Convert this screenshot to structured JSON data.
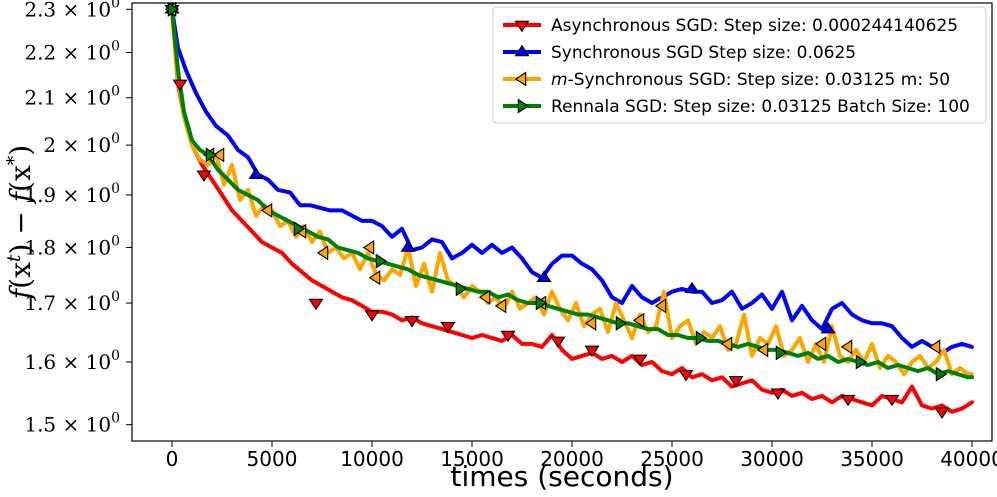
{
  "chart_data": {
    "type": "line",
    "title": "",
    "xlabel": "times (seconds)",
    "ylabel": "f(x^t) − f(x^*)",
    "yscale": "log",
    "xlim": [
      -2000,
      41000
    ],
    "ylim": [
      1.475,
      2.315
    ],
    "x_ticks": [
      0,
      5000,
      10000,
      15000,
      20000,
      25000,
      30000,
      35000,
      40000
    ],
    "x_tick_labels": [
      "0",
      "5000",
      "10000",
      "15000",
      "20000",
      "25000",
      "30000",
      "35000",
      "40000"
    ],
    "y_ticks": [
      1.5,
      1.6,
      1.7,
      1.8,
      1.9,
      2.0,
      2.1,
      2.2,
      2.3
    ],
    "y_tick_labels": [
      "1.5 × 10",
      "1.6 × 10",
      "1.7 × 10",
      "1.8 × 10",
      "1.9 × 10",
      "2 × 10",
      "2.1 × 10",
      "2.2 × 10",
      "2.3 × 10"
    ],
    "y_tick_exponent": "0",
    "legend_position": "top-right",
    "series": [
      {
        "name": "Asynchronous SGD: Step size: 0.000244140625",
        "color": "#ff0000",
        "marker": "triangle-down",
        "x": [
          0,
          300,
          600,
          1000,
          1500,
          2000,
          2500,
          3000,
          3500,
          4000,
          4500,
          5000,
          5500,
          6000,
          6500,
          7000,
          7500,
          8000,
          8500,
          9000,
          9500,
          10000,
          10500,
          11000,
          11500,
          12000,
          12500,
          13000,
          13500,
          14000,
          14500,
          15000,
          15500,
          16000,
          16500,
          17000,
          17500,
          18000,
          18500,
          19000,
          19500,
          20000,
          20500,
          21000,
          21500,
          22000,
          22500,
          23000,
          23500,
          24000,
          24500,
          25000,
          25500,
          26000,
          26500,
          27000,
          27500,
          28000,
          28500,
          29000,
          29500,
          30000,
          30500,
          31000,
          31500,
          32000,
          32500,
          33000,
          33500,
          34000,
          34500,
          35000,
          35500,
          36000,
          36500,
          37000,
          37500,
          38000,
          38500,
          39000,
          39500,
          40000
        ],
        "y": [
          2.3,
          2.13,
          2.06,
          2.0,
          1.96,
          1.93,
          1.9,
          1.87,
          1.85,
          1.83,
          1.81,
          1.8,
          1.79,
          1.77,
          1.755,
          1.74,
          1.73,
          1.72,
          1.71,
          1.705,
          1.695,
          1.685,
          1.685,
          1.68,
          1.67,
          1.675,
          1.665,
          1.66,
          1.655,
          1.65,
          1.645,
          1.64,
          1.645,
          1.64,
          1.635,
          1.645,
          1.63,
          1.63,
          1.625,
          1.645,
          1.62,
          1.605,
          1.61,
          1.615,
          1.605,
          1.61,
          1.6,
          1.61,
          1.595,
          1.6,
          1.585,
          1.58,
          1.59,
          1.575,
          1.58,
          1.57,
          1.575,
          1.56,
          1.565,
          1.57,
          1.555,
          1.55,
          1.555,
          1.545,
          1.55,
          1.54,
          1.545,
          1.535,
          1.545,
          1.54,
          1.535,
          1.53,
          1.545,
          1.54,
          1.535,
          1.56,
          1.53,
          1.525,
          1.53,
          1.52,
          1.525,
          1.535
        ],
        "markers_x": [
          0,
          400,
          1600,
          7200,
          10000,
          12000,
          13800,
          16800,
          19300,
          21000,
          23400,
          25700,
          28200,
          30300,
          33800,
          36000,
          38500
        ],
        "markers_y": [
          2.3,
          2.13,
          1.94,
          1.7,
          1.68,
          1.67,
          1.66,
          1.645,
          1.635,
          1.62,
          1.605,
          1.58,
          1.57,
          1.55,
          1.54,
          1.54,
          1.52
        ]
      },
      {
        "name": "Synchronous SGD Step size: 0.0625",
        "color": "#0000ff",
        "marker": "triangle-up",
        "x": [
          0,
          300,
          700,
          1200,
          1700,
          2200,
          2800,
          3300,
          3800,
          4300,
          4800,
          5300,
          5900,
          6400,
          6900,
          7400,
          7900,
          8500,
          9000,
          9500,
          10000,
          10500,
          11000,
          11500,
          12000,
          12500,
          13000,
          13500,
          14000,
          14500,
          15000,
          15500,
          16000,
          16500,
          17000,
          17500,
          18000,
          18500,
          19000,
          19500,
          20000,
          20500,
          21000,
          21500,
          22000,
          22500,
          23000,
          23500,
          24000,
          24500,
          25000,
          25500,
          26000,
          26500,
          27000,
          27500,
          28000,
          28500,
          29000,
          29500,
          30000,
          30500,
          31000,
          31500,
          32000,
          32500,
          33000,
          33500,
          34000,
          34500,
          35000,
          35500,
          36000,
          36500,
          37000,
          37500,
          38000,
          38500,
          39000,
          39500,
          40000
        ],
        "y": [
          2.3,
          2.21,
          2.16,
          2.11,
          2.07,
          2.04,
          2.02,
          1.99,
          1.975,
          1.94,
          1.93,
          1.91,
          1.905,
          1.88,
          1.88,
          1.875,
          1.87,
          1.87,
          1.86,
          1.85,
          1.85,
          1.84,
          1.82,
          1.835,
          1.795,
          1.8,
          1.815,
          1.81,
          1.78,
          1.79,
          1.805,
          1.79,
          1.805,
          1.79,
          1.8,
          1.78,
          1.755,
          1.745,
          1.77,
          1.785,
          1.785,
          1.77,
          1.76,
          1.74,
          1.71,
          1.7,
          1.73,
          1.71,
          1.7,
          1.71,
          1.72,
          1.725,
          1.72,
          1.72,
          1.7,
          1.705,
          1.72,
          1.69,
          1.7,
          1.715,
          1.69,
          1.72,
          1.67,
          1.695,
          1.67,
          1.655,
          1.69,
          1.7,
          1.68,
          1.67,
          1.665,
          1.665,
          1.66,
          1.64,
          1.625,
          1.635,
          1.625,
          1.615,
          1.625,
          1.63,
          1.625
        ],
        "markers_x": [
          0,
          4200,
          11800,
          18600,
          26000,
          32800
        ],
        "markers_y": [
          2.3,
          1.94,
          1.8,
          1.745,
          1.725,
          1.655
        ]
      },
      {
        "name": "m-Synchronous  SGD: Step size: 0.03125 m: 50",
        "color": "#ffa500",
        "marker": "triangle-left",
        "x": [
          0,
          300,
          600,
          1000,
          1400,
          1800,
          2200,
          2600,
          3000,
          3400,
          3800,
          4200,
          4600,
          5000,
          5400,
          5800,
          6200,
          6600,
          7000,
          7400,
          7800,
          8200,
          8600,
          9000,
          9400,
          9800,
          10200,
          10600,
          11000,
          11400,
          11800,
          12200,
          12600,
          13000,
          13400,
          13800,
          14200,
          14600,
          15000,
          15400,
          15800,
          16200,
          16600,
          17000,
          17400,
          17800,
          18200,
          18600,
          19000,
          19400,
          19800,
          20200,
          20600,
          21000,
          21400,
          21800,
          22200,
          22600,
          23000,
          23400,
          23800,
          24200,
          24600,
          25000,
          25400,
          25800,
          26200,
          26600,
          27000,
          27400,
          27800,
          28200,
          28600,
          29000,
          29400,
          29800,
          30200,
          30600,
          31000,
          31400,
          31800,
          32200,
          32600,
          33000,
          33400,
          33800,
          34200,
          34600,
          35000,
          35400,
          35800,
          36200,
          36600,
          37000,
          37400,
          37800,
          38200,
          38600,
          39000,
          39400,
          39800,
          40000
        ],
        "y": [
          2.3,
          2.14,
          2.06,
          2.0,
          1.97,
          1.96,
          1.98,
          1.92,
          1.96,
          1.89,
          1.91,
          1.86,
          1.88,
          1.87,
          1.84,
          1.85,
          1.82,
          1.84,
          1.81,
          1.83,
          1.79,
          1.8,
          1.78,
          1.79,
          1.76,
          1.79,
          1.75,
          1.74,
          1.76,
          1.75,
          1.8,
          1.73,
          1.77,
          1.72,
          1.79,
          1.74,
          1.73,
          1.71,
          1.73,
          1.72,
          1.7,
          1.71,
          1.69,
          1.72,
          1.69,
          1.7,
          1.71,
          1.68,
          1.72,
          1.69,
          1.67,
          1.7,
          1.66,
          1.68,
          1.69,
          1.65,
          1.7,
          1.67,
          1.64,
          1.68,
          1.65,
          1.66,
          1.72,
          1.64,
          1.66,
          1.67,
          1.63,
          1.65,
          1.64,
          1.66,
          1.62,
          1.63,
          1.68,
          1.61,
          1.64,
          1.63,
          1.66,
          1.61,
          1.62,
          1.64,
          1.6,
          1.63,
          1.6,
          1.66,
          1.61,
          1.6,
          1.62,
          1.6,
          1.63,
          1.59,
          1.61,
          1.6,
          1.58,
          1.6,
          1.61,
          1.59,
          1.6,
          1.62,
          1.58,
          1.59,
          1.58,
          1.58
        ],
        "markers_x": [
          0,
          1900,
          2400,
          4800,
          6500,
          7600,
          9900,
          10200,
          15700,
          16500,
          18500,
          21000,
          23400,
          24500,
          27800,
          29600,
          32500,
          33800,
          38200
        ],
        "markers_y": [
          2.3,
          1.98,
          1.98,
          1.87,
          1.83,
          1.79,
          1.8,
          1.745,
          1.71,
          1.695,
          1.7,
          1.665,
          1.67,
          1.695,
          1.63,
          1.62,
          1.63,
          1.625,
          1.625
        ]
      },
      {
        "name": "Rennala SGD: Step size: 0.03125 Batch Size: 100",
        "color": "#008000",
        "marker": "triangle-right",
        "x": [
          0,
          300,
          600,
          1000,
          1400,
          1800,
          2300,
          2800,
          3300,
          3800,
          4300,
          4800,
          5300,
          5800,
          6300,
          6800,
          7300,
          7800,
          8300,
          8800,
          9300,
          9800,
          10300,
          10800,
          11300,
          11800,
          12300,
          12800,
          13300,
          13800,
          14300,
          14800,
          15300,
          15800,
          16300,
          16800,
          17300,
          17800,
          18300,
          18800,
          19300,
          19800,
          20300,
          20800,
          21300,
          21800,
          22300,
          22800,
          23300,
          23800,
          24300,
          24800,
          25300,
          25800,
          26300,
          26800,
          27300,
          27800,
          28300,
          28800,
          29300,
          29800,
          30300,
          30800,
          31300,
          31800,
          32300,
          32800,
          33300,
          33800,
          34300,
          34800,
          35300,
          35800,
          36300,
          36800,
          37300,
          37800,
          38300,
          38800,
          39300,
          39800,
          40000
        ],
        "y": [
          2.3,
          2.16,
          2.07,
          2.01,
          1.99,
          1.98,
          1.95,
          1.93,
          1.91,
          1.9,
          1.89,
          1.87,
          1.86,
          1.85,
          1.84,
          1.83,
          1.82,
          1.815,
          1.8,
          1.795,
          1.79,
          1.78,
          1.775,
          1.77,
          1.765,
          1.76,
          1.75,
          1.745,
          1.74,
          1.735,
          1.73,
          1.725,
          1.72,
          1.72,
          1.71,
          1.715,
          1.705,
          1.7,
          1.7,
          1.695,
          1.69,
          1.685,
          1.68,
          1.68,
          1.675,
          1.67,
          1.665,
          1.665,
          1.66,
          1.655,
          1.655,
          1.645,
          1.645,
          1.64,
          1.64,
          1.635,
          1.635,
          1.63,
          1.625,
          1.63,
          1.625,
          1.62,
          1.62,
          1.615,
          1.61,
          1.615,
          1.605,
          1.61,
          1.6,
          1.605,
          1.6,
          1.595,
          1.6,
          1.59,
          1.595,
          1.59,
          1.585,
          1.59,
          1.58,
          1.585,
          1.58,
          1.575,
          1.575
        ],
        "markers_x": [
          0,
          1900,
          6300,
          10400,
          14400,
          18400,
          22400,
          26400,
          30400,
          34400,
          38400
        ],
        "markers_y": [
          2.3,
          1.98,
          1.835,
          1.775,
          1.725,
          1.7,
          1.665,
          1.64,
          1.615,
          1.6,
          1.58
        ]
      }
    ]
  }
}
